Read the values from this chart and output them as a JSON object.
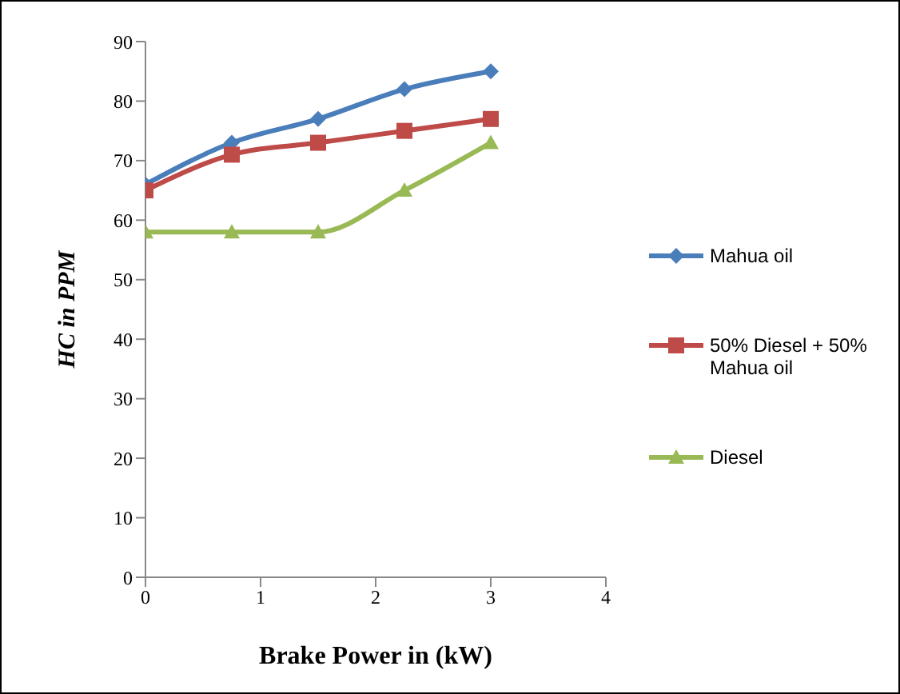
{
  "chart_data": {
    "type": "line",
    "xlabel": "Brake Power in (kW)",
    "ylabel": "HC in PPM",
    "x": [
      0,
      0.75,
      1.5,
      2.25,
      3
    ],
    "series": [
      {
        "name": "Mahua oil",
        "color": "#4a7ebb",
        "marker": "diamond",
        "values": [
          66,
          73,
          77,
          82,
          85
        ]
      },
      {
        "name": "50% Diesel + 50% Mahua oil",
        "color": "#be4b48",
        "marker": "square",
        "values": [
          65,
          71,
          73,
          75,
          77
        ]
      },
      {
        "name": "Diesel",
        "color": "#98b954",
        "marker": "triangle",
        "values": [
          58,
          58,
          58,
          65,
          73
        ]
      }
    ],
    "xlim": [
      0,
      4
    ],
    "xticks": [
      0,
      1,
      2,
      3,
      4
    ],
    "ylim": [
      0,
      90
    ],
    "yticks": [
      0,
      10,
      20,
      30,
      40,
      50,
      60,
      70,
      80,
      90
    ],
    "legend": "right"
  }
}
